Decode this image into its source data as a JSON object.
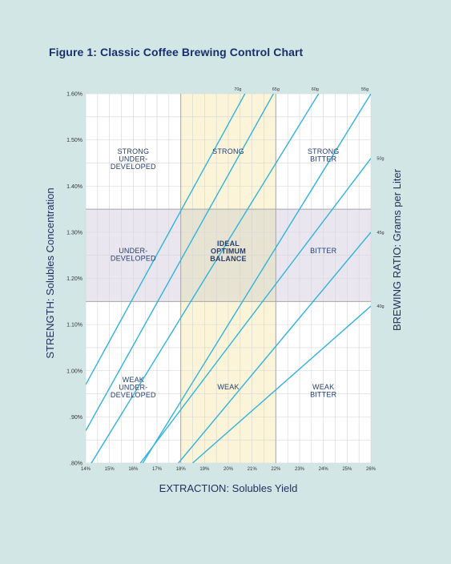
{
  "figure_title": "Figure 1: Classic Coffee Brewing Control Chart",
  "colors": {
    "background": "#d3e6e6",
    "grid": "#d6d6d6",
    "optimal_extraction_band": "#fbf4d8",
    "optimal_strength_band": "#e9e6ef",
    "ideal_zone": "#e7e3d2",
    "band_border": "#a7a7a7",
    "ratio_lines": "#30b4de",
    "title_text": "#17306b"
  },
  "chart_data": {
    "type": "line",
    "title": "Figure 1: Classic Coffee Brewing Control Chart",
    "xlabel": "EXTRACTION: Solubles Yield",
    "ylabel": "STRENGTH: Solubles Concentration",
    "y2label": "BREWING RATIO: Grams per Liter",
    "xlim": [
      14,
      26
    ],
    "ylim": [
      0.8,
      1.6
    ],
    "grid": true,
    "x_ticks": [
      14,
      15,
      16,
      17,
      18,
      19,
      20,
      21,
      22,
      23,
      24,
      25,
      26
    ],
    "x_tick_labels": [
      "14%",
      "15%",
      "16%",
      "17%",
      "18%",
      "19%",
      "20%",
      "21%",
      "22%",
      "23%",
      "24%",
      "25%",
      "26%"
    ],
    "y_ticks": [
      0.8,
      0.9,
      1.0,
      1.1,
      1.2,
      1.3,
      1.4,
      1.5,
      1.6
    ],
    "y_tick_labels": [
      ".80%",
      ".90%",
      "1.00%",
      "1.10%",
      "1.20%",
      "1.30%",
      "1.40%",
      "1.50%",
      "1.60%"
    ],
    "ideal_extraction_range": [
      18,
      22
    ],
    "ideal_strength_range": [
      1.15,
      1.35
    ],
    "series": [
      {
        "name": "70g",
        "x": [
          14,
          20.7
        ],
        "y": [
          0.97,
          1.6
        ]
      },
      {
        "name": "65g",
        "x": [
          14,
          21.9
        ],
        "y": [
          0.87,
          1.6
        ]
      },
      {
        "name": "60g",
        "x": [
          14,
          23.8
        ],
        "y": [
          0.78,
          1.6
        ]
      },
      {
        "name": "55g",
        "x": [
          14,
          26
        ],
        "y": [
          0.6,
          1.6
        ]
      },
      {
        "name": "50g",
        "x": [
          16.3,
          26
        ],
        "y": [
          0.8,
          1.46
        ]
      },
      {
        "name": "45g",
        "x": [
          17.9,
          26
        ],
        "y": [
          0.8,
          1.3
        ]
      },
      {
        "name": "40g",
        "x": [
          18.5,
          26
        ],
        "y": [
          0.8,
          1.14
        ]
      }
    ],
    "series_label_positions": [
      {
        "x": 20.4,
        "y": 1.605
      },
      {
        "x": 22.0,
        "y": 1.605
      },
      {
        "x": 23.65,
        "y": 1.605
      },
      {
        "x": 25.75,
        "y": 1.605
      },
      {
        "x": 26.25,
        "y": 1.46
      },
      {
        "x": 26.25,
        "y": 1.3
      },
      {
        "x": 26.25,
        "y": 1.14
      }
    ],
    "regions": [
      {
        "lines": [
          "STRONG",
          "UNDER-",
          "DEVELOPED"
        ],
        "x": 16.0,
        "y": 1.47,
        "bold": false
      },
      {
        "lines": [
          "STRONG"
        ],
        "x": 20.0,
        "y": 1.47,
        "bold": false
      },
      {
        "lines": [
          "STRONG",
          "BITTER"
        ],
        "x": 24.0,
        "y": 1.47,
        "bold": false
      },
      {
        "lines": [
          "UNDER-",
          "DEVELOPED"
        ],
        "x": 16.0,
        "y": 1.255,
        "bold": false
      },
      {
        "lines": [
          "IDEAL",
          "OPTIMUM",
          "BALANCE"
        ],
        "x": 20.0,
        "y": 1.27,
        "bold": true
      },
      {
        "lines": [
          "BITTER"
        ],
        "x": 24.0,
        "y": 1.255,
        "bold": false
      },
      {
        "lines": [
          "WEAK",
          "UNDER-",
          "DEVELOPED"
        ],
        "x": 16.0,
        "y": 0.975,
        "bold": false
      },
      {
        "lines": [
          "WEAK"
        ],
        "x": 20.0,
        "y": 0.96,
        "bold": false
      },
      {
        "lines": [
          "WEAK",
          "BITTER"
        ],
        "x": 24.0,
        "y": 0.96,
        "bold": false
      }
    ]
  }
}
